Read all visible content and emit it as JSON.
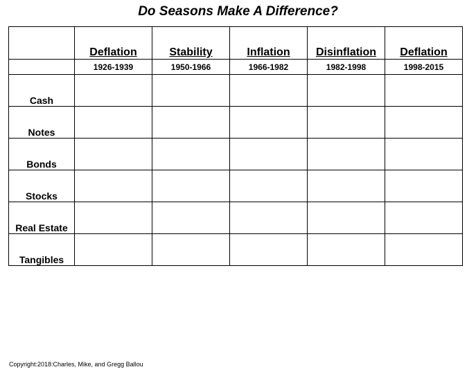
{
  "title": "Do Seasons Make A Difference?",
  "periods": [
    {
      "name": "Deflation",
      "years": "1926-1939"
    },
    {
      "name": "Stability",
      "years": "1950-1966"
    },
    {
      "name": "Inflation",
      "years": "1966-1982"
    },
    {
      "name": "Disinflation",
      "years": "1982-1998"
    },
    {
      "name": "Deflation",
      "years": "1998-2015"
    }
  ],
  "assets": [
    "Cash",
    "Notes",
    "Bonds",
    "Stocks",
    "Real Estate",
    "Tangibles"
  ],
  "copyright": "Copyright:2018:Charles, Mike, and Gregg Ballou"
}
